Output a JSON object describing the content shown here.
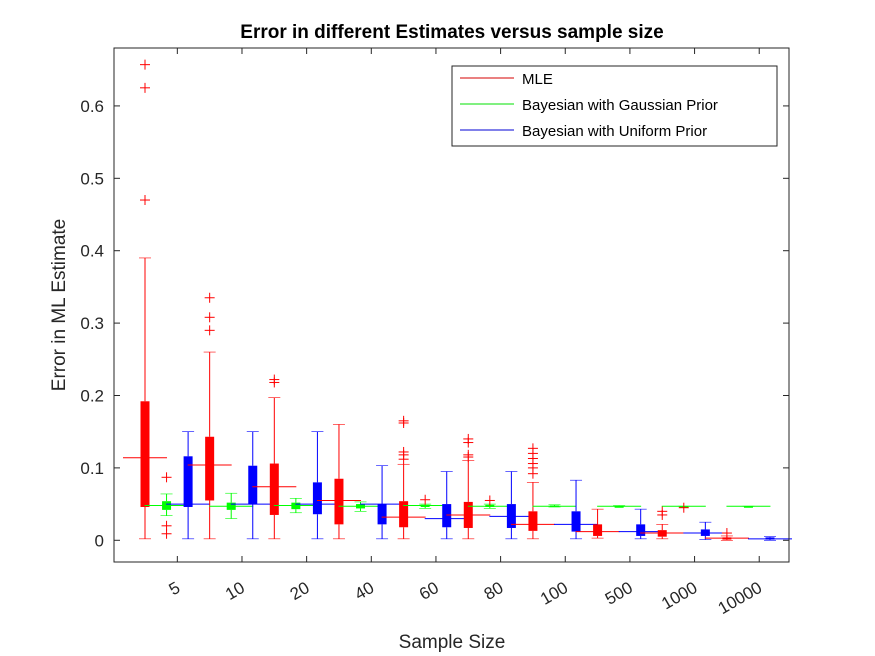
{
  "chart_data": {
    "type": "boxplot",
    "title": "Error in different Estimates versus sample size",
    "xlabel": "Sample Size",
    "ylabel": "Error in ML Estimate",
    "ylim": [
      -0.03,
      0.68
    ],
    "yticks": [
      0,
      0.1,
      0.2,
      0.3,
      0.4,
      0.5,
      0.6
    ],
    "ytick_labels": [
      "0",
      "0.1",
      "0.2",
      "0.3",
      "0.4",
      "0.5",
      "0.6"
    ],
    "xtick_labels": [
      "5",
      "10",
      "20",
      "40",
      "60",
      "80",
      "100",
      "500",
      "1000",
      "10000"
    ],
    "legend_position": "top-right",
    "colors": {
      "MLE": "#ff0000",
      "Gaussian": "#00ff00",
      "Uniform": "#0000ff"
    },
    "series": [
      {
        "name": "MLE",
        "color": "#ff0000",
        "legend_color": "#d40000",
        "boxes": [
          {
            "min": 0.002,
            "q1": 0.046,
            "median": 0.114,
            "q3": 0.192,
            "max": 0.39,
            "outliers": [
              0.47,
              0.625,
              0.657
            ]
          },
          {
            "min": 0.002,
            "q1": 0.055,
            "median": 0.104,
            "q3": 0.143,
            "max": 0.26,
            "outliers": [
              0.29,
              0.308,
              0.335
            ]
          },
          {
            "min": 0.002,
            "q1": 0.035,
            "median": 0.074,
            "q3": 0.106,
            "max": 0.197,
            "outliers": [
              0.218,
              0.222
            ]
          },
          {
            "min": 0.002,
            "q1": 0.022,
            "median": 0.055,
            "q3": 0.085,
            "max": 0.16,
            "outliers": []
          },
          {
            "min": 0.002,
            "q1": 0.018,
            "median": 0.032,
            "q3": 0.054,
            "max": 0.105,
            "outliers": [
              0.112,
              0.118,
              0.122,
              0.162,
              0.165
            ]
          },
          {
            "min": 0.002,
            "q1": 0.017,
            "median": 0.035,
            "q3": 0.053,
            "max": 0.11,
            "outliers": [
              0.115,
              0.118,
              0.135,
              0.14
            ]
          },
          {
            "min": 0.002,
            "q1": 0.013,
            "median": 0.022,
            "q3": 0.04,
            "max": 0.08,
            "outliers": [
              0.092,
              0.1,
              0.106,
              0.113,
              0.12,
              0.127
            ]
          },
          {
            "min": 0.003,
            "q1": 0.006,
            "median": 0.012,
            "q3": 0.022,
            "max": 0.043,
            "outliers": []
          },
          {
            "min": 0.002,
            "q1": 0.005,
            "median": 0.01,
            "q3": 0.014,
            "max": 0.022,
            "outliers": [
              0.035,
              0.04
            ]
          },
          {
            "min": 0.0,
            "q1": 0.001,
            "median": 0.003,
            "q3": 0.004,
            "max": 0.006,
            "outliers": [
              0.01
            ]
          }
        ]
      },
      {
        "name": "Bayesian with Gaussian Prior",
        "color": "#00ff00",
        "legend_color": "#00e000",
        "boxes": [
          {
            "min": 0.034,
            "q1": 0.042,
            "median": 0.048,
            "q3": 0.054,
            "max": 0.064,
            "outliers": [
              0.009,
              0.02,
              0.087
            ]
          },
          {
            "min": 0.03,
            "q1": 0.042,
            "median": 0.047,
            "q3": 0.052,
            "max": 0.065,
            "outliers": []
          },
          {
            "min": 0.038,
            "q1": 0.043,
            "median": 0.048,
            "q3": 0.052,
            "max": 0.058,
            "outliers": []
          },
          {
            "min": 0.04,
            "q1": 0.044,
            "median": 0.047,
            "q3": 0.05,
            "max": 0.053,
            "outliers": []
          },
          {
            "min": 0.044,
            "q1": 0.046,
            "median": 0.048,
            "q3": 0.049,
            "max": 0.05,
            "outliers": [
              0.056
            ]
          },
          {
            "min": 0.044,
            "q1": 0.046,
            "median": 0.047,
            "q3": 0.049,
            "max": 0.05,
            "outliers": [
              0.055
            ]
          },
          {
            "min": 0.046,
            "q1": 0.047,
            "median": 0.047,
            "q3": 0.048,
            "max": 0.049,
            "outliers": []
          },
          {
            "min": 0.047,
            "q1": 0.047,
            "median": 0.047,
            "q3": 0.047,
            "max": 0.048,
            "outliers": []
          },
          {
            "min": 0.047,
            "q1": 0.047,
            "median": 0.047,
            "q3": 0.047,
            "max": 0.047,
            "outliers": [
              0.045
            ]
          },
          {
            "min": 0.047,
            "q1": 0.047,
            "median": 0.047,
            "q3": 0.047,
            "max": 0.047,
            "outliers": []
          }
        ]
      },
      {
        "name": "Bayesian with Uniform Prior",
        "color": "#0000ff",
        "legend_color": "#0000d4",
        "boxes": [
          {
            "min": 0.002,
            "q1": 0.046,
            "median": 0.05,
            "q3": 0.116,
            "max": 0.15,
            "outliers": []
          },
          {
            "min": 0.002,
            "q1": 0.05,
            "median": 0.05,
            "q3": 0.103,
            "max": 0.15,
            "outliers": []
          },
          {
            "min": 0.002,
            "q1": 0.036,
            "median": 0.05,
            "q3": 0.08,
            "max": 0.15,
            "outliers": []
          },
          {
            "min": 0.002,
            "q1": 0.022,
            "median": 0.05,
            "q3": 0.05,
            "max": 0.103,
            "outliers": []
          },
          {
            "min": 0.002,
            "q1": 0.018,
            "median": 0.03,
            "q3": 0.05,
            "max": 0.095,
            "outliers": []
          },
          {
            "min": 0.002,
            "q1": 0.017,
            "median": 0.033,
            "q3": 0.05,
            "max": 0.095,
            "outliers": []
          },
          {
            "min": 0.002,
            "q1": 0.012,
            "median": 0.022,
            "q3": 0.04,
            "max": 0.083,
            "outliers": []
          },
          {
            "min": 0.002,
            "q1": 0.006,
            "median": 0.012,
            "q3": 0.022,
            "max": 0.043,
            "outliers": []
          },
          {
            "min": 0.001,
            "q1": 0.006,
            "median": 0.01,
            "q3": 0.015,
            "max": 0.025,
            "outliers": []
          },
          {
            "min": 0.0,
            "q1": 0.001,
            "median": 0.002,
            "q3": 0.004,
            "max": 0.005,
            "outliers": []
          }
        ]
      }
    ]
  }
}
